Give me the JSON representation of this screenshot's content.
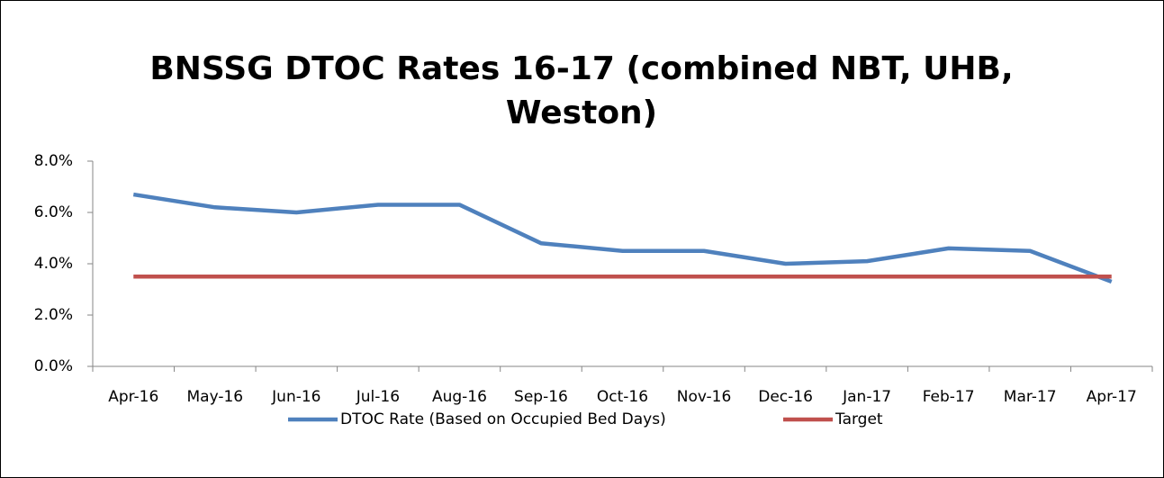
{
  "chart_data": {
    "type": "line",
    "title": "BNSSG DTOC Rates 16-17 (combined NBT, UHB, Weston)",
    "categories": [
      "Apr-16",
      "May-16",
      "Jun-16",
      "Jul-16",
      "Aug-16",
      "Sep-16",
      "Oct-16",
      "Nov-16",
      "Dec-16",
      "Jan-17",
      "Feb-17",
      "Mar-17",
      "Apr-17"
    ],
    "series": [
      {
        "name": "DTOC Rate (Based on Occupied Bed Days)",
        "color": "#4f81bd",
        "values": [
          6.7,
          6.2,
          6.0,
          6.3,
          6.3,
          4.8,
          4.5,
          4.5,
          4.0,
          4.1,
          4.6,
          4.5,
          3.3
        ]
      },
      {
        "name": "Target",
        "color": "#c0504d",
        "values": [
          3.5,
          3.5,
          3.5,
          3.5,
          3.5,
          3.5,
          3.5,
          3.5,
          3.5,
          3.5,
          3.5,
          3.5,
          3.5
        ]
      }
    ],
    "ylim": [
      0,
      8
    ],
    "yticks": [
      {
        "value": 0,
        "label": "0.0%"
      },
      {
        "value": 2,
        "label": "2.0%"
      },
      {
        "value": 4,
        "label": "4.0%"
      },
      {
        "value": 6,
        "label": "6.0%"
      },
      {
        "value": 8,
        "label": "8.0%"
      }
    ],
    "legend": "bottom"
  }
}
